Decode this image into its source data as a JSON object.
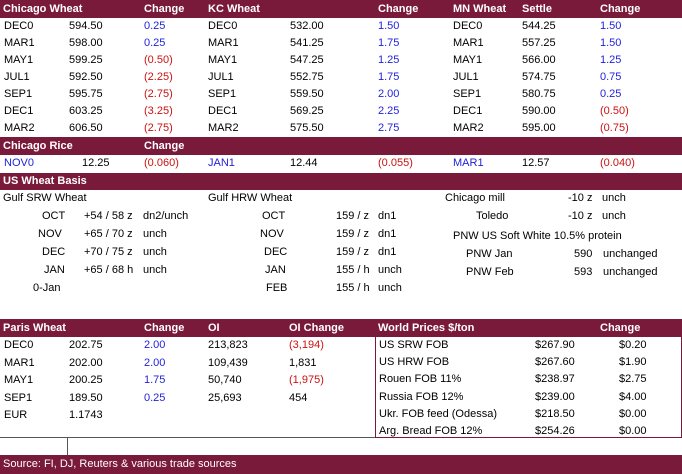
{
  "top": {
    "headers": [
      "Chicago Wheat",
      "Change",
      "KC Wheat",
      "Change",
      "MN Wheat",
      "Settle",
      "Change"
    ],
    "chicago": [
      {
        "m": "DEC0",
        "p": "594.50",
        "c": "0.25",
        "t": "blue"
      },
      {
        "m": "MAR1",
        "p": "598.00",
        "c": "0.25",
        "t": "blue"
      },
      {
        "m": "MAY1",
        "p": "599.25",
        "c": "(0.50)",
        "t": "red"
      },
      {
        "m": "JUL1",
        "p": "592.50",
        "c": "(2.25)",
        "t": "red"
      },
      {
        "m": "SEP1",
        "p": "595.75",
        "c": "(2.75)",
        "t": "red"
      },
      {
        "m": "DEC1",
        "p": "603.25",
        "c": "(3.25)",
        "t": "red"
      },
      {
        "m": "MAR2",
        "p": "606.50",
        "c": "(2.75)",
        "t": "red"
      }
    ],
    "kc": [
      {
        "m": "DEC0",
        "p": "532.00",
        "c": "1.50",
        "t": "blue"
      },
      {
        "m": "MAR1",
        "p": "541.25",
        "c": "1.75",
        "t": "blue"
      },
      {
        "m": "MAY1",
        "p": "547.25",
        "c": "1.25",
        "t": "blue"
      },
      {
        "m": "JUL1",
        "p": "552.75",
        "c": "1.75",
        "t": "blue"
      },
      {
        "m": "SEP1",
        "p": "559.50",
        "c": "2.00",
        "t": "blue"
      },
      {
        "m": "DEC1",
        "p": "569.25",
        "c": "2.25",
        "t": "blue"
      },
      {
        "m": "MAR2",
        "p": "575.50",
        "c": "2.75",
        "t": "blue"
      }
    ],
    "mn": [
      {
        "m": "DEC0",
        "p": "544.25",
        "c": "1.50",
        "t": "blue"
      },
      {
        "m": "MAR1",
        "p": "557.25",
        "c": "1.50",
        "t": "blue"
      },
      {
        "m": "MAY1",
        "p": "566.00",
        "c": "1.25",
        "t": "blue"
      },
      {
        "m": "JUL1",
        "p": "574.75",
        "c": "0.75",
        "t": "blue"
      },
      {
        "m": "SEP1",
        "p": "580.75",
        "c": "0.25",
        "t": "blue"
      },
      {
        "m": "DEC1",
        "p": "590.00",
        "c": "(0.50)",
        "t": "red"
      },
      {
        "m": "MAR2",
        "p": "595.00",
        "c": "(0.75)",
        "t": "red"
      }
    ]
  },
  "rice": {
    "title": "Chicago Rice",
    "change_label": "Change",
    "cells": [
      {
        "m": "NOV0",
        "p": "12.25",
        "c": "(0.060)"
      },
      {
        "m": "JAN1",
        "p": "12.44",
        "c": "(0.055)"
      },
      {
        "m": "MAR1",
        "p": "12.57",
        "c": "(0.040)"
      }
    ]
  },
  "basis": {
    "title": "US Wheat Basis",
    "srw_title": "Gulf SRW Wheat",
    "srw": [
      {
        "m": "OCT",
        "v": "+54 / 58 z",
        "n": "dn2/unch"
      },
      {
        "m": "NOV",
        "v": "+65 / 70 z",
        "n": "unch"
      },
      {
        "m": "DEC",
        "v": "+70 / 75 z",
        "n": "unch"
      },
      {
        "m": "JAN",
        "v": "+65 / 68 h",
        "n": "unch"
      },
      {
        "m": "0-Jan",
        "v": "",
        "n": ""
      }
    ],
    "hrw_title": "Gulf HRW Wheat",
    "hrw": [
      {
        "m": "OCT",
        "v": "159 / z",
        "n": "dn1"
      },
      {
        "m": "NOV",
        "v": "159 / z",
        "n": "dn1"
      },
      {
        "m": "DEC",
        "v": "159 / z",
        "n": "dn1"
      },
      {
        "m": "JAN",
        "v": "155 / h",
        "n": "unch"
      },
      {
        "m": "FEB",
        "v": "155 / h",
        "n": "unch"
      }
    ],
    "chicago_mill_label": "Chicago mill",
    "chicago_mill_value": "-10 z",
    "chicago_mill_note": "unch",
    "toledo_label": "Toledo",
    "toledo_value": "-10 z",
    "toledo_note": "unch",
    "pnw_title": "PNW US Soft White 10.5% protein",
    "pnw": [
      {
        "m": "PNW Jan",
        "v": "590",
        "n": "unchanged"
      },
      {
        "m": "PNW Feb",
        "v": "593",
        "n": "unchanged"
      }
    ]
  },
  "paris": {
    "headers": [
      "Paris Wheat",
      "Change",
      "OI",
      "OI Change"
    ],
    "rows": [
      {
        "m": "DEC0",
        "p": "202.75",
        "c": "2.00",
        "oi": "213,823",
        "oic": "(3,194)",
        "oit": "red"
      },
      {
        "m": "MAR1",
        "p": "202.00",
        "c": "2.00",
        "oi": "109,439",
        "oic": "1,831",
        "oit": "black"
      },
      {
        "m": "MAY1",
        "p": "200.25",
        "c": "1.75",
        "oi": "50,740",
        "oic": "(1,975)",
        "oit": "red"
      },
      {
        "m": "SEP1",
        "p": "189.50",
        "c": "0.25",
        "oi": "25,693",
        "oic": "454",
        "oit": "black"
      }
    ],
    "eur_label": "EUR",
    "eur_value": "1.1743"
  },
  "world": {
    "title": "World Prices $/ton",
    "change_label": "Change",
    "rows": [
      {
        "n": "US SRW FOB",
        "p": "$267.90",
        "c": "$0.20"
      },
      {
        "n": "US HRW FOB",
        "p": "$267.60",
        "c": "$1.90"
      },
      {
        "n": "Rouen FOB 11%",
        "p": "$238.97",
        "c": "$2.75"
      },
      {
        "n": "Russia FOB 12%",
        "p": "$239.00",
        "c": "$4.00"
      },
      {
        "n": "Ukr. FOB feed (Odessa)",
        "p": "$218.50",
        "c": "$0.00"
      },
      {
        "n": "Arg. Bread FOB 12%",
        "p": "$254.26",
        "c": "$0.00"
      }
    ]
  },
  "footer": "Source: FI, DJ, Reuters & various trade sources",
  "colors": {
    "header_bg": "#7a1a3a",
    "positive": "#1f1fdb",
    "negative": "#cc1111"
  }
}
